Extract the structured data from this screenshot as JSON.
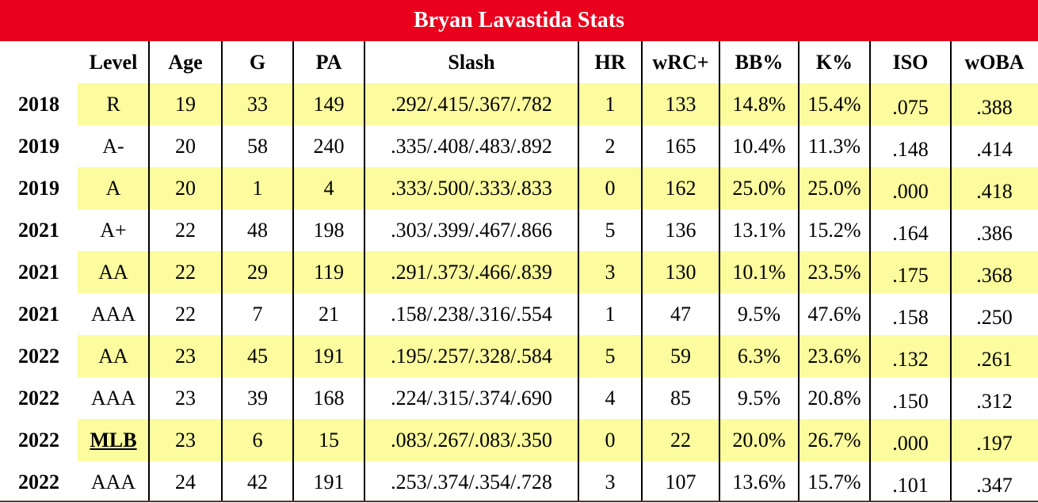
{
  "title": "Bryan Lavastida Stats",
  "columns": [
    "",
    "Level",
    "Age",
    "G",
    "PA",
    "Slash",
    "HR",
    "wRC+",
    "BB%",
    "K%",
    "ISO",
    "wOBA"
  ],
  "rows": [
    [
      "2018",
      "R",
      "19",
      "33",
      "149",
      ".292/.415/.367/.782",
      "1",
      "133",
      "14.8%",
      "15.4%",
      ".075",
      ".388"
    ],
    [
      "2019",
      "A-",
      "20",
      "58",
      "240",
      ".335/.408/.483/.892",
      "2",
      "165",
      "10.4%",
      "11.3%",
      ".148",
      ".414"
    ],
    [
      "2019",
      "A",
      "20",
      "1",
      "4",
      ".333/.500/.333/.833",
      "0",
      "162",
      "25.0%",
      "25.0%",
      ".000",
      ".418"
    ],
    [
      "2021",
      "A+",
      "22",
      "48",
      "198",
      ".303/.399/.467/.866",
      "5",
      "136",
      "13.1%",
      "15.2%",
      ".164",
      ".386"
    ],
    [
      "2021",
      "AA",
      "22",
      "29",
      "119",
      ".291/.373/.466/.839",
      "3",
      "130",
      "10.1%",
      "23.5%",
      ".175",
      ".368"
    ],
    [
      "2021",
      "AAA",
      "22",
      "7",
      "21",
      ".158/.238/.316/.554",
      "1",
      "47",
      "9.5%",
      "47.6%",
      ".158",
      ".250"
    ],
    [
      "2022",
      "AA",
      "23",
      "45",
      "191",
      ".195/.257/.328/.584",
      "5",
      "59",
      "6.3%",
      "23.6%",
      ".132",
      ".261"
    ],
    [
      "2022",
      "AAA",
      "23",
      "39",
      "168",
      ".224/.315/.374/.690",
      "4",
      "85",
      "9.5%",
      "20.8%",
      ".150",
      ".312"
    ],
    [
      "2022",
      "MLB",
      "23",
      "6",
      "15",
      ".083/.267/.083/.350",
      "0",
      "22",
      "20.0%",
      "26.7%",
      ".000",
      ".197"
    ],
    [
      "2022",
      "AAA",
      "24",
      "42",
      "191",
      ".253/.374/.354/.728",
      "3",
      "107",
      "13.6%",
      "15.7%",
      ".101",
      ".347"
    ]
  ],
  "colors": {
    "title_bar": "#e8001d",
    "highlight": "#fcfb9e"
  }
}
